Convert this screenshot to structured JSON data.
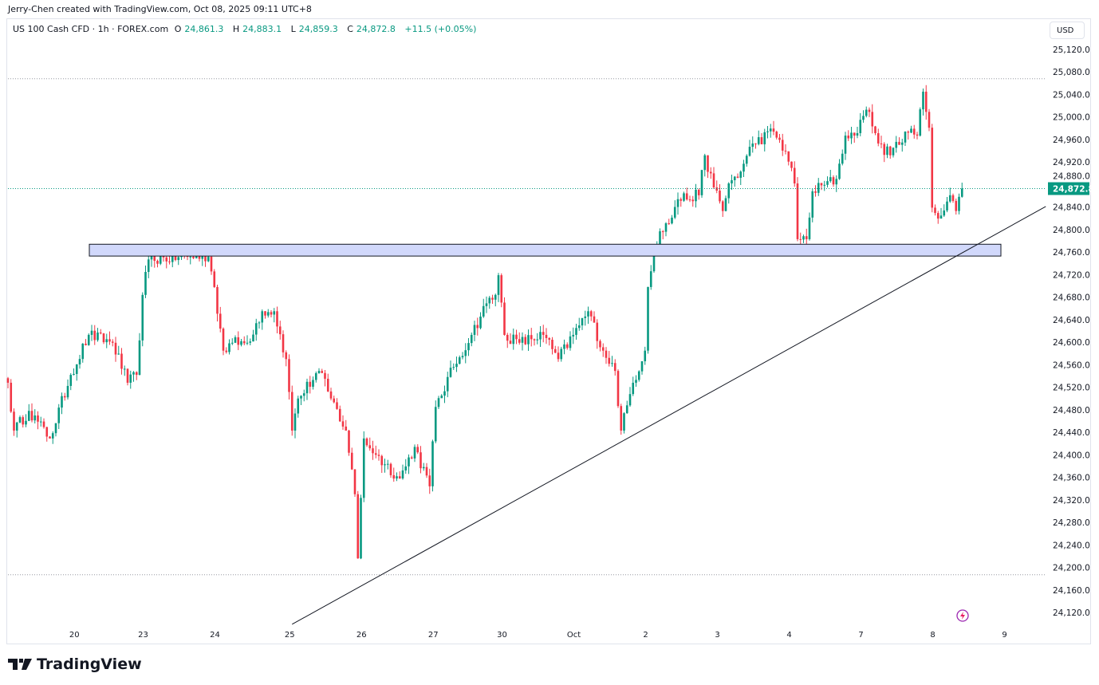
{
  "credit": "Jerry-Chen created with TradingView.com, Oct 08, 2025 09:11 UTC+8",
  "legend": {
    "symbol": "US 100 Cash CFD · 1h · FOREX.com",
    "open_label": "O",
    "open": "24,861.3",
    "high_label": "H",
    "high": "24,883.1",
    "low_label": "L",
    "low": "24,859.3",
    "close_label": "C",
    "close": "24,872.8",
    "change": "+11.5 (+0.05%)"
  },
  "currency": "USD",
  "logo_text": "TradingView",
  "colors": {
    "up": "#089981",
    "down": "#f23645",
    "zone_fill": "#d1d8fb",
    "line": "#131722"
  },
  "chart_data": {
    "type": "candlestick",
    "title": "US 100 Cash CFD · 1h",
    "ylim": [
      24100,
      25140
    ],
    "y_ticks": [
      "25,120.0",
      "25,080.0",
      "25,040.0",
      "25,000.0",
      "24,960.0",
      "24,920.0",
      "24,880.0",
      "24,840.0",
      "24,800.0",
      "24,760.0",
      "24,720.0",
      "24,680.0",
      "24,640.0",
      "24,600.0",
      "24,560.0",
      "24,520.0",
      "24,480.0",
      "24,440.0",
      "24,400.0",
      "24,360.0",
      "24,320.0",
      "24,280.0",
      "24,240.0",
      "24,200.0",
      "24,160.0",
      "24,120.0"
    ],
    "x_ticks": [
      {
        "label": "20",
        "bar": 23
      },
      {
        "label": "23",
        "bar": 46
      },
      {
        "label": "24",
        "bar": 70
      },
      {
        "label": "25",
        "bar": 95
      },
      {
        "label": "26",
        "bar": 119
      },
      {
        "label": "27",
        "bar": 143
      },
      {
        "label": "30",
        "bar": 166
      },
      {
        "label": "Oct",
        "bar": 190
      },
      {
        "label": "2",
        "bar": 214
      },
      {
        "label": "3",
        "bar": 238
      },
      {
        "label": "4",
        "bar": 262
      },
      {
        "label": "7",
        "bar": 286
      },
      {
        "label": "8",
        "bar": 310
      },
      {
        "label": "9",
        "bar": 334
      }
    ],
    "bar_count": 320,
    "close_waypoints": [
      [
        0,
        24528
      ],
      [
        2,
        24443
      ],
      [
        7,
        24478
      ],
      [
        14,
        24429
      ],
      [
        21,
        24542
      ],
      [
        27,
        24613
      ],
      [
        35,
        24599
      ],
      [
        40,
        24528
      ],
      [
        43,
        24542
      ],
      [
        45,
        24684
      ],
      [
        47,
        24747
      ],
      [
        61,
        24752
      ],
      [
        67,
        24752
      ],
      [
        69,
        24698
      ],
      [
        72,
        24585
      ],
      [
        75,
        24599
      ],
      [
        80,
        24599
      ],
      [
        85,
        24655
      ],
      [
        89,
        24655
      ],
      [
        93,
        24570
      ],
      [
        95,
        24443
      ],
      [
        97,
        24500
      ],
      [
        104,
        24549
      ],
      [
        108,
        24500
      ],
      [
        113,
        24443
      ],
      [
        116,
        24330
      ],
      [
        117,
        24216
      ],
      [
        119,
        24429
      ],
      [
        123,
        24400
      ],
      [
        131,
        24358
      ],
      [
        136,
        24414
      ],
      [
        141,
        24344
      ],
      [
        143,
        24485
      ],
      [
        149,
        24556
      ],
      [
        155,
        24613
      ],
      [
        160,
        24669
      ],
      [
        163,
        24684
      ],
      [
        164,
        24719
      ],
      [
        166,
        24613
      ],
      [
        171,
        24599
      ],
      [
        179,
        24613
      ],
      [
        184,
        24570
      ],
      [
        189,
        24613
      ],
      [
        194,
        24655
      ],
      [
        199,
        24585
      ],
      [
        203,
        24549
      ],
      [
        205,
        24443
      ],
      [
        209,
        24528
      ],
      [
        213,
        24585
      ],
      [
        214,
        24698
      ],
      [
        216,
        24769
      ],
      [
        218,
        24797
      ],
      [
        221,
        24811
      ],
      [
        224,
        24854
      ],
      [
        231,
        24861
      ],
      [
        233,
        24932
      ],
      [
        236,
        24875
      ],
      [
        239,
        24833
      ],
      [
        241,
        24882
      ],
      [
        245,
        24903
      ],
      [
        249,
        24953
      ],
      [
        256,
        24974
      ],
      [
        260,
        24939
      ],
      [
        263,
        24882
      ],
      [
        264,
        24783
      ],
      [
        267,
        24783
      ],
      [
        269,
        24868
      ],
      [
        277,
        24890
      ],
      [
        280,
        24967
      ],
      [
        283,
        24967
      ],
      [
        285,
        24995
      ],
      [
        288,
        25009
      ],
      [
        291,
        24953
      ],
      [
        295,
        24932
      ],
      [
        300,
        24974
      ],
      [
        304,
        24967
      ],
      [
        306,
        25045
      ],
      [
        308,
        24981
      ],
      [
        309,
        24839
      ],
      [
        312,
        24825
      ],
      [
        315,
        24861
      ],
      [
        317,
        24833
      ],
      [
        319,
        24872.8
      ]
    ],
    "last_price": "24,872.8",
    "period_high": 25068,
    "period_low": 24187,
    "support_zone": {
      "top": 24774,
      "bottom": 24753,
      "from_bar": 24,
      "to_bar": 332
    },
    "trendline": {
      "from": {
        "bar": 95,
        "price": 24099
      },
      "to": {
        "bar": 347,
        "price": 24841
      }
    }
  }
}
